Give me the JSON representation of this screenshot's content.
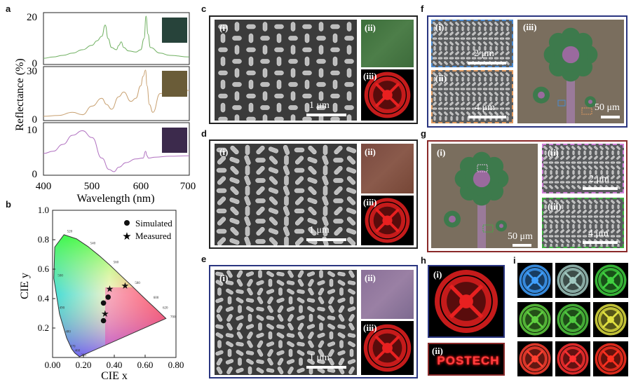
{
  "panel_labels": {
    "a": "a",
    "b": "b",
    "c": "c",
    "d": "d",
    "e": "e",
    "f": "f",
    "g": "g",
    "h": "h",
    "i": "i"
  },
  "sub_labels": {
    "i": "(i)",
    "ii": "(ii)",
    "iii": "(iii)"
  },
  "scale_bars": {
    "one_um": "1 μm",
    "two_um": "2 μm",
    "four_um": "4 μm",
    "fifty_um": "50 μm"
  },
  "seal_text": "POSTECH",
  "colors": {
    "green_curve": "#6fb060",
    "tan_curve": "#c8a070",
    "purple_curve": "#b070c0",
    "swatch_green": "#27433a",
    "swatch_olive": "#6a5c38",
    "swatch_purple": "#3c2a4c",
    "frame_black": "#222222",
    "frame_blue": "#2a3580",
    "frame_red": "#8a2a2a"
  },
  "chart_data": [
    {
      "type": "line",
      "xlabel": "Wavelength (nm)",
      "ylabel": "Reflectance (%)",
      "xlim": [
        400,
        700
      ],
      "x_ticks": [
        "400",
        "500",
        "600",
        "700"
      ],
      "series": [
        {
          "color": "#6fb060",
          "ylim": [
            0,
            20
          ],
          "y_ticks": [
            "20",
            "0"
          ],
          "x": [
            400,
            420,
            440,
            460,
            480,
            500,
            510,
            520,
            527,
            533,
            540,
            550,
            555,
            560,
            565,
            575,
            590,
            600,
            607,
            611,
            615,
            620,
            640,
            660,
            700
          ],
          "y": [
            1.2,
            1.8,
            2.5,
            3.5,
            5,
            7,
            9,
            11,
            16,
            10,
            6,
            5,
            7,
            8.5,
            6,
            4.5,
            4,
            5,
            10,
            20,
            12,
            6,
            3.5,
            2.5,
            1.8
          ]
        },
        {
          "color": "#c8a070",
          "ylim": [
            0,
            30
          ],
          "y_ticks": [
            "30",
            "0"
          ],
          "x": [
            400,
            430,
            460,
            480,
            500,
            520,
            530,
            540,
            555,
            565,
            580,
            590,
            600,
            605,
            610,
            613,
            618,
            625,
            640,
            660,
            700
          ],
          "y": [
            0.5,
            1,
            3,
            1.5,
            7,
            12,
            8,
            5,
            13,
            16,
            10,
            12,
            20,
            26,
            30,
            20,
            8,
            3,
            15,
            17,
            17
          ]
        },
        {
          "color": "#b070c0",
          "ylim": [
            0,
            10
          ],
          "y_ticks": [
            "10",
            "0"
          ],
          "x": [
            400,
            420,
            440,
            460,
            480,
            500,
            520,
            535,
            545,
            555,
            570,
            590,
            605,
            610,
            613,
            616,
            630,
            660,
            700
          ],
          "y": [
            4,
            4.5,
            6,
            8,
            9,
            7.5,
            3,
            0.5,
            0,
            1,
            2,
            2.8,
            3,
            4.5,
            3.5,
            3,
            3.2,
            3.4,
            3.5
          ]
        }
      ]
    },
    {
      "type": "scatter",
      "xlabel": "CIE x",
      "ylabel": "CIE y",
      "xlim": [
        0,
        0.8
      ],
      "ylim": [
        0,
        1.0
      ],
      "x_ticks": [
        "0.00",
        "0.20",
        "0.40",
        "0.60",
        "0.80"
      ],
      "y_ticks": [
        "0.2",
        "0.4",
        "0.6",
        "0.8",
        "1.0"
      ],
      "legend": [
        "Simulated",
        "Measured"
      ],
      "locus_labels": [
        "520",
        "540",
        "560",
        "580",
        "600",
        "620",
        "700",
        "500",
        "490",
        "480",
        "470",
        "460",
        "380"
      ],
      "simulated": [
        {
          "x": 0.33,
          "y": 0.37
        },
        {
          "x": 0.36,
          "y": 0.41
        },
        {
          "x": 0.33,
          "y": 0.25
        }
      ],
      "measured": [
        {
          "x": 0.37,
          "y": 0.47
        },
        {
          "x": 0.34,
          "y": 0.3
        },
        {
          "x": 0.47,
          "y": 0.49
        }
      ]
    }
  ]
}
